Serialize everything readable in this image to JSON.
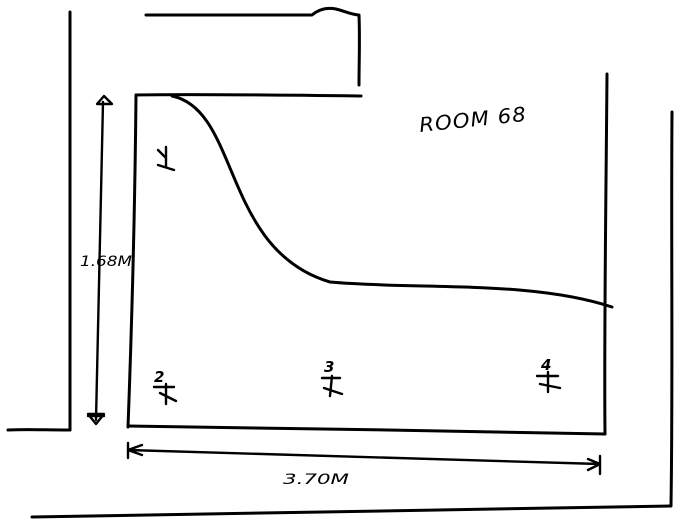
{
  "room_label": "ROOM 68",
  "dimensions": {
    "height": "1.68M",
    "width": "3.70M"
  },
  "markers": [
    {
      "number": ""
    },
    {
      "number": "2"
    },
    {
      "number": "3"
    },
    {
      "number": "4"
    }
  ]
}
